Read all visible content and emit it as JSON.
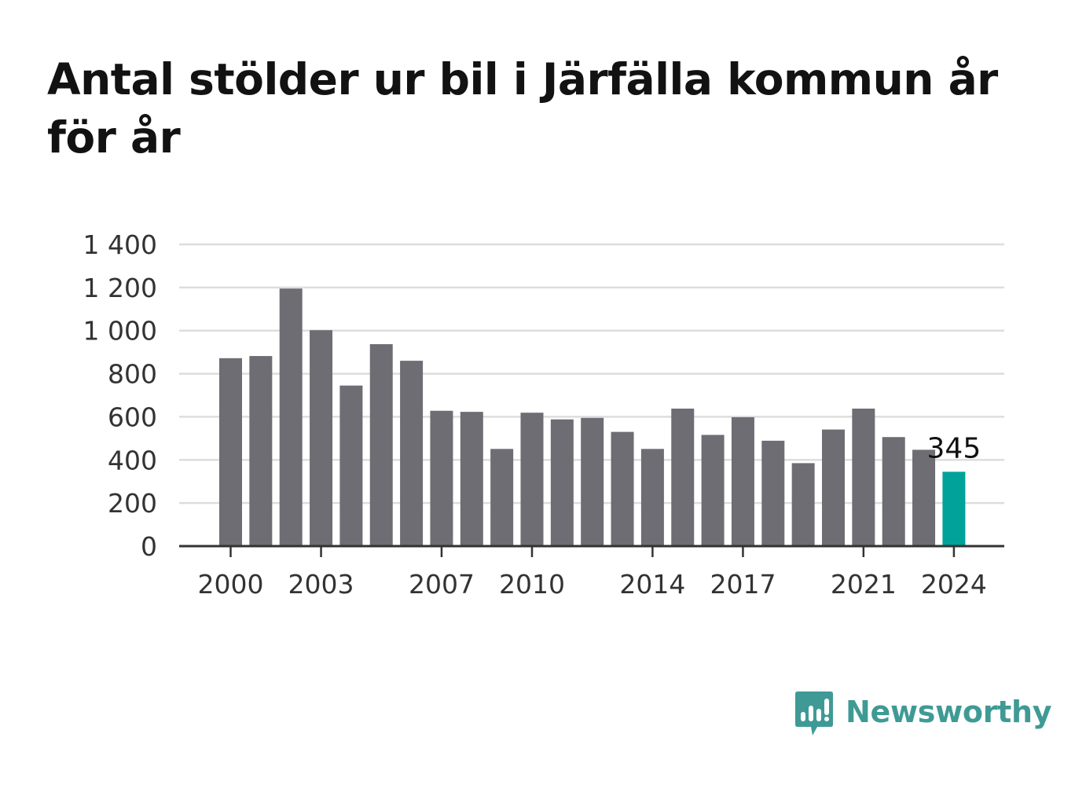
{
  "title": "Antal stölder ur bil i Järfälla kommun år för år",
  "brand": {
    "name": "Newsworthy",
    "logo_icon": "bar-chart-speech-bubble-icon",
    "color": "#3f9a95"
  },
  "colors": {
    "bar": "#6e6d73",
    "highlight": "#00a29a",
    "grid": "#dddddd",
    "axis": "#333333"
  },
  "chart_data": {
    "type": "bar",
    "categories": [
      "2000",
      "2001",
      "2002",
      "2003",
      "2004",
      "2005",
      "2006",
      "2007",
      "2008",
      "2009",
      "2010",
      "2011",
      "2012",
      "2013",
      "2014",
      "2015",
      "2016",
      "2017",
      "2018",
      "2019",
      "2020",
      "2021",
      "2022",
      "2023",
      "2024"
    ],
    "values": [
      872,
      882,
      1195,
      1002,
      745,
      937,
      860,
      628,
      623,
      451,
      619,
      588,
      595,
      530,
      451,
      638,
      516,
      598,
      489,
      385,
      541,
      638,
      506,
      447,
      345
    ],
    "ylim": [
      0,
      1400
    ],
    "yticks": [
      0,
      200,
      400,
      600,
      800,
      1000,
      1200,
      1400
    ],
    "ytick_labels": [
      "0",
      "200",
      "400",
      "600",
      "800",
      "1 000",
      "1 200",
      "1 400"
    ],
    "xtick_labels": [
      "2000",
      "2003",
      "2007",
      "2010",
      "2014",
      "2017",
      "2021",
      "2024"
    ],
    "highlight_index": 24,
    "annotation": "345",
    "grid": true,
    "xlabel": "",
    "ylabel": ""
  }
}
